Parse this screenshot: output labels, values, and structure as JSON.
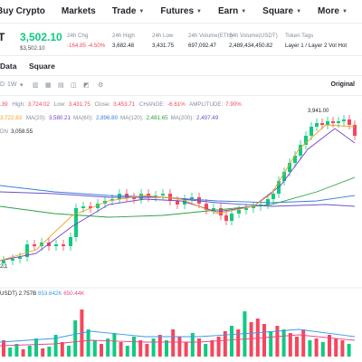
{
  "nav": {
    "items": [
      {
        "label": "Buy Crypto",
        "caret": false
      },
      {
        "label": "Markets",
        "caret": false
      },
      {
        "label": "Trade",
        "caret": true
      },
      {
        "label": "Futures",
        "caret": true
      },
      {
        "label": "Earn",
        "caret": true
      },
      {
        "label": "Square",
        "caret": true
      },
      {
        "label": "More",
        "caret": true
      }
    ]
  },
  "ticker": {
    "symbol_fragment": "T",
    "price": "3,502.10",
    "price_usd": "$3,502.10",
    "stats": [
      {
        "label": "24h Chg",
        "value": "-164.85 -4.50%",
        "negative": true
      },
      {
        "label": "24h High",
        "value": "3,682.48",
        "negative": false
      },
      {
        "label": "24h Low",
        "value": "3,431.75",
        "negative": false
      },
      {
        "label": "24h Volume(ETH)",
        "value": "697,092.47",
        "negative": false
      },
      {
        "label": "24h Volume(USDT)",
        "value": "2,489,434,450.82",
        "negative": false
      },
      {
        "label": "Token Tags",
        "value": "Layer 1 / Layer 2  Vol  Hot",
        "negative": false
      }
    ]
  },
  "tabs": [
    "Data",
    "Square"
  ],
  "toolbar": {
    "intervals": [
      "D",
      "1W"
    ],
    "chart_type_original": "Original"
  },
  "ohlc_row": {
    "open_fragment": ".39",
    "high_label": "High:",
    "high_value": "3,724.02",
    "low_label": "Low:",
    "low_value": "3,431.75",
    "close_label": "Close:",
    "close_value": "3,453.71",
    "change_label": "CHANGE:",
    "change_value": "-6.61%",
    "amp_label": "AMPLITUDE:",
    "amp_value": "7.90%"
  },
  "ma_row": {
    "first_value": "3,722.83",
    "items": [
      {
        "label": "MA(20):",
        "value": "3,580.21",
        "color": "#7b3fc4"
      },
      {
        "label": "MA(60):",
        "value": "2,896.80",
        "color": "#3c7ce0"
      },
      {
        "label": "MA(120):",
        "value": "2,481.65",
        "color": "#2ea043"
      },
      {
        "label": "MA(200):",
        "value": "2,497.49",
        "color": "#6a52c9"
      }
    ],
    "first_color": "#f0a020"
  },
  "dn_row": {
    "label": "DN",
    "value": "3,058.55"
  },
  "chart": {
    "high_marker": "3,941.00",
    "low_marker": "2,1",
    "up_color": "#0ecb81",
    "down_color": "#f6465d"
  },
  "volume_row": {
    "label_fragment": "USDT)",
    "value1": "2.757B",
    "value2": "853.642K",
    "value3": "650.44K",
    "color2": "#3c9ae8",
    "color3": "#e8478a"
  }
}
